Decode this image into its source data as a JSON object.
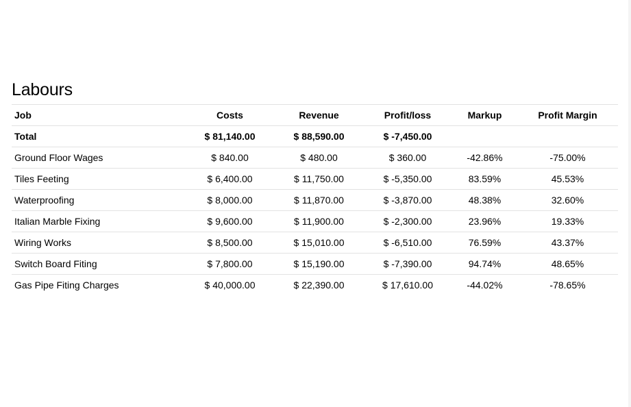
{
  "report": {
    "title": "Labours"
  },
  "table": {
    "headers": {
      "job": "Job",
      "costs": "Costs",
      "revenue": "Revenue",
      "profit_loss": "Profit/loss",
      "markup": "Markup",
      "profit_margin": "Profit Margin"
    },
    "total": {
      "job": "Total",
      "costs": "$ 81,140.00",
      "revenue": "$ 88,590.00",
      "profit_loss": "$ -7,450.00",
      "markup": "",
      "profit_margin": ""
    },
    "rows": [
      {
        "job": "Ground Floor Wages",
        "costs": "$ 840.00",
        "revenue": "$ 480.00",
        "profit_loss": "$ 360.00",
        "markup": "-42.86%",
        "profit_margin": "-75.00%"
      },
      {
        "job": "Tiles Feeting",
        "costs": "$ 6,400.00",
        "revenue": "$ 11,750.00",
        "profit_loss": "$ -5,350.00",
        "markup": "83.59%",
        "profit_margin": "45.53%"
      },
      {
        "job": "Waterproofing",
        "costs": "$ 8,000.00",
        "revenue": "$ 11,870.00",
        "profit_loss": "$ -3,870.00",
        "markup": "48.38%",
        "profit_margin": "32.60%"
      },
      {
        "job": "Italian Marble Fixing",
        "costs": "$ 9,600.00",
        "revenue": "$ 11,900.00",
        "profit_loss": "$ -2,300.00",
        "markup": "23.96%",
        "profit_margin": "19.33%"
      },
      {
        "job": "Wiring Works",
        "costs": "$ 8,500.00",
        "revenue": "$ 15,010.00",
        "profit_loss": "$ -6,510.00",
        "markup": "76.59%",
        "profit_margin": "43.37%"
      },
      {
        "job": "Switch Board Fiting",
        "costs": "$ 7,800.00",
        "revenue": "$ 15,190.00",
        "profit_loss": "$ -7,390.00",
        "markup": "94.74%",
        "profit_margin": "48.65%"
      },
      {
        "job": "Gas Pipe Fiting Charges",
        "costs": "$ 40,000.00",
        "revenue": "$ 22,390.00",
        "profit_loss": "$ 17,610.00",
        "markup": "-44.02%",
        "profit_margin": "-78.65%"
      }
    ]
  }
}
